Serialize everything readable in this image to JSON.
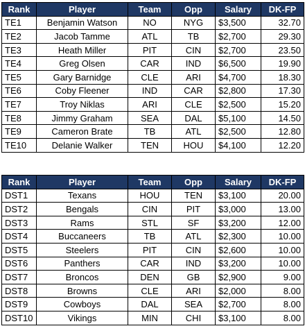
{
  "headers": [
    "Rank",
    "Player",
    "Team",
    "Opp",
    "Salary",
    "DK-FP"
  ],
  "te_rows": [
    [
      "TE1",
      "Benjamin Watson",
      "NO",
      "NYG",
      "$3,500",
      "32.70"
    ],
    [
      "TE2",
      "Jacob Tamme",
      "ATL",
      "TB",
      "$2,700",
      "29.30"
    ],
    [
      "TE3",
      "Heath Miller",
      "PIT",
      "CIN",
      "$2,700",
      "23.50"
    ],
    [
      "TE4",
      "Greg Olsen",
      "CAR",
      "IND",
      "$6,500",
      "19.90"
    ],
    [
      "TE5",
      "Gary Barnidge",
      "CLE",
      "ARI",
      "$4,700",
      "18.30"
    ],
    [
      "TE6",
      "Coby Fleener",
      "IND",
      "CAR",
      "$2,800",
      "17.30"
    ],
    [
      "TE7",
      "Troy Niklas",
      "ARI",
      "CLE",
      "$2,500",
      "15.20"
    ],
    [
      "TE8",
      "Jimmy Graham",
      "SEA",
      "DAL",
      "$5,100",
      "14.50"
    ],
    [
      "TE9",
      "Cameron Brate",
      "TB",
      "ATL",
      "$2,500",
      "12.80"
    ],
    [
      "TE10",
      "Delanie Walker",
      "TEN",
      "HOU",
      "$4,100",
      "12.20"
    ]
  ],
  "dst_rows": [
    [
      "DST1",
      "Texans",
      "HOU",
      "TEN",
      "$3,100",
      "20.00"
    ],
    [
      "DST2",
      "Bengals",
      "CIN",
      "PIT",
      "$3,000",
      "13.00"
    ],
    [
      "DST3",
      "Rams",
      "STL",
      "SF",
      "$3,200",
      "12.00"
    ],
    [
      "DST4",
      "Buccaneers",
      "TB",
      "ATL",
      "$2,300",
      "10.00"
    ],
    [
      "DST5",
      "Steelers",
      "PIT",
      "CIN",
      "$2,600",
      "10.00"
    ],
    [
      "DST6",
      "Panthers",
      "CAR",
      "IND",
      "$3,200",
      "10.00"
    ],
    [
      "DST7",
      "Broncos",
      "DEN",
      "GB",
      "$2,900",
      "9.00"
    ],
    [
      "DST8",
      "Browns",
      "CLE",
      "ARI",
      "$2,000",
      "8.00"
    ],
    [
      "DST9",
      "Cowboys",
      "DAL",
      "SEA",
      "$2,700",
      "8.00"
    ],
    [
      "DST10",
      "Vikings",
      "MIN",
      "CHI",
      "$3,100",
      "8.00"
    ]
  ],
  "colors": {
    "header_bg": "#1f3864",
    "header_text": "#ffffff",
    "border": "#000000"
  }
}
